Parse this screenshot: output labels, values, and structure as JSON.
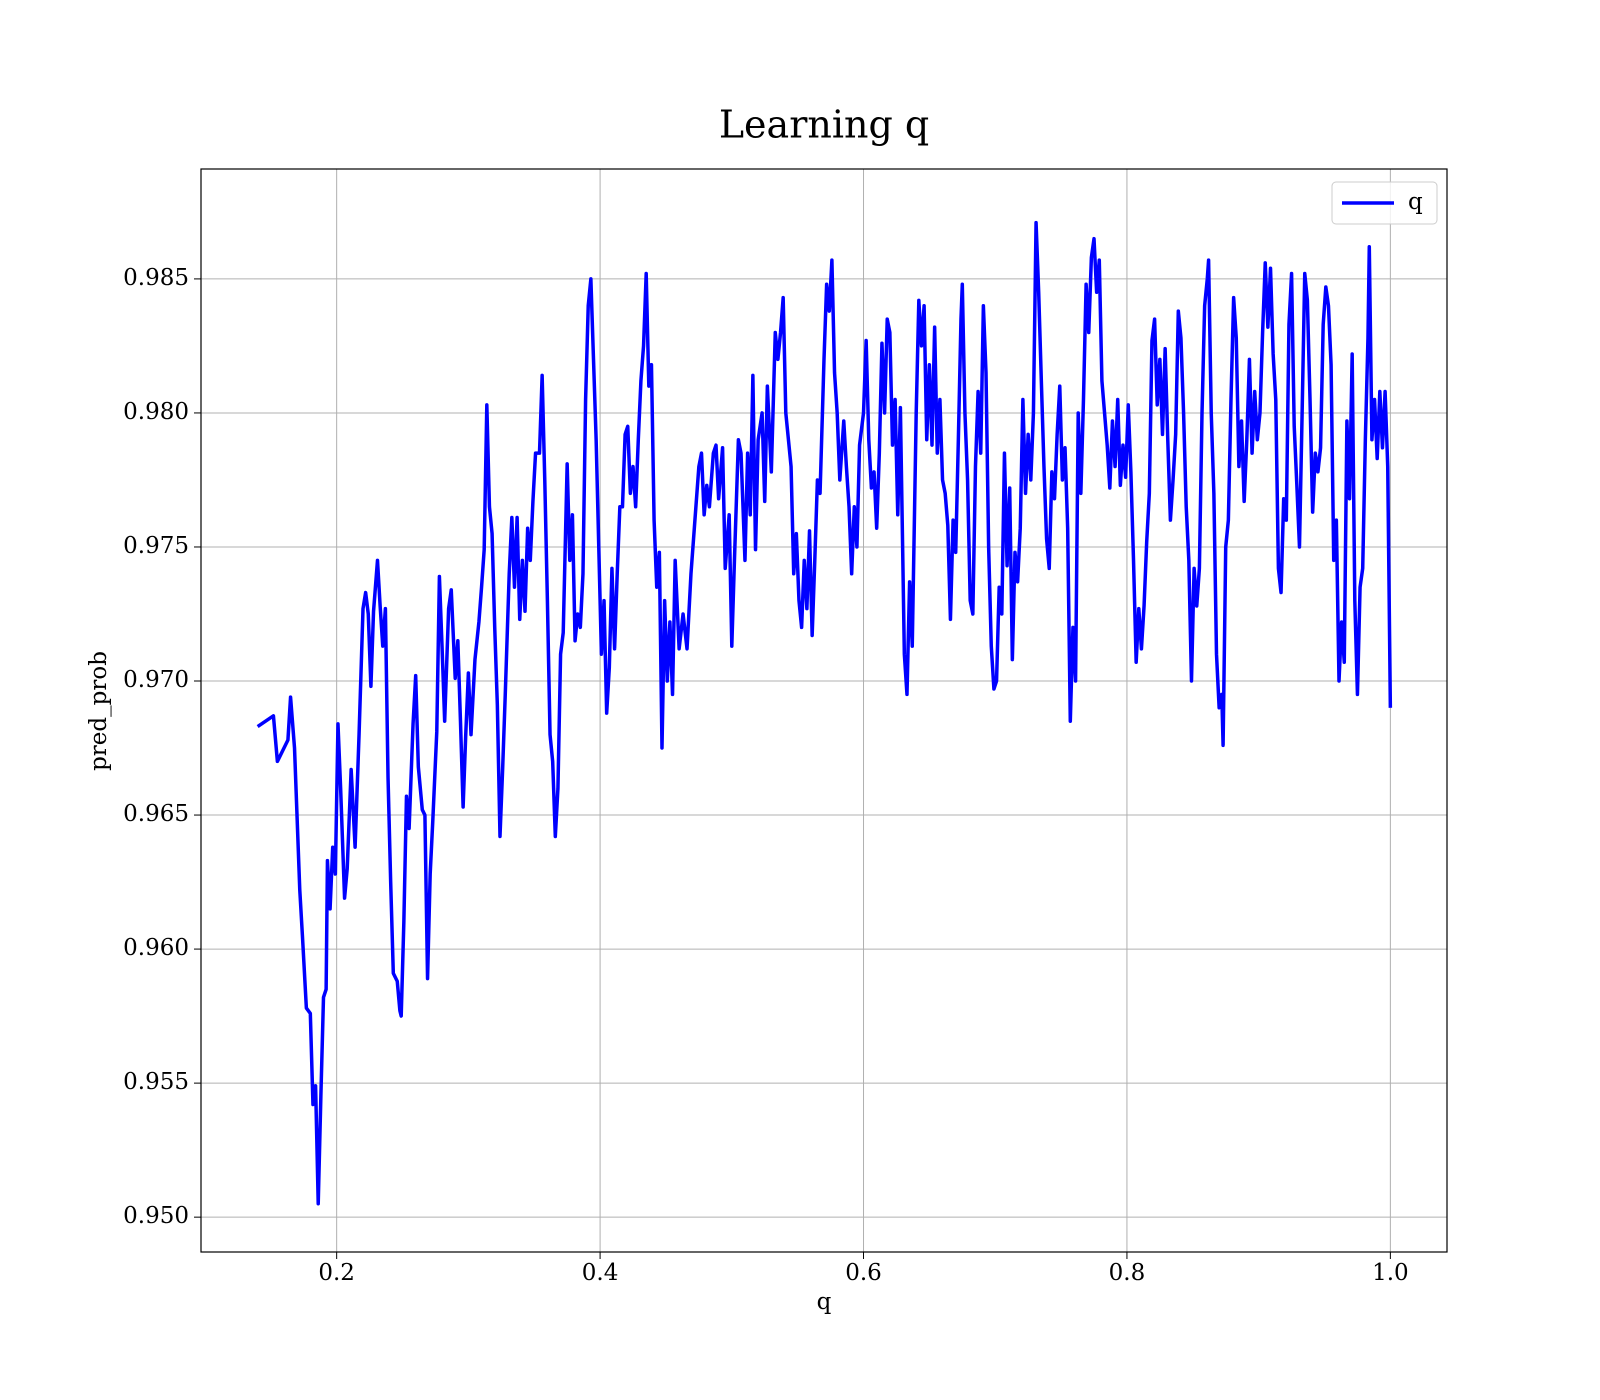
{
  "chart_data": {
    "type": "line",
    "title": "Learning q",
    "x_label": "q",
    "y_label": "pred_prob",
    "x": [
      0.14,
      0.152,
      0.155,
      0.163,
      0.165,
      0.168,
      0.172,
      0.174,
      0.177,
      0.18,
      0.182,
      0.184,
      0.186,
      0.188,
      0.19,
      0.192,
      0.193,
      0.195,
      0.197,
      0.199,
      0.201,
      0.203,
      0.206,
      0.208,
      0.211,
      0.214,
      0.217,
      0.22,
      0.222,
      0.224,
      0.226,
      0.228,
      0.231,
      0.233,
      0.235,
      0.237,
      0.239,
      0.241,
      0.243,
      0.246,
      0.248,
      0.249,
      0.251,
      0.253,
      0.255,
      0.258,
      0.26,
      0.262,
      0.265,
      0.267,
      0.269,
      0.271,
      0.273,
      0.276,
      0.278,
      0.28,
      0.282,
      0.285,
      0.287,
      0.29,
      0.292,
      0.294,
      0.296,
      0.298,
      0.3,
      0.302,
      0.305,
      0.308,
      0.31,
      0.312,
      0.314,
      0.316,
      0.318,
      0.32,
      0.322,
      0.324,
      0.326,
      0.328,
      0.331,
      0.333,
      0.335,
      0.337,
      0.339,
      0.341,
      0.343,
      0.345,
      0.347,
      0.349,
      0.351,
      0.354,
      0.356,
      0.358,
      0.36,
      0.362,
      0.364,
      0.366,
      0.368,
      0.37,
      0.372,
      0.375,
      0.377,
      0.379,
      0.381,
      0.383,
      0.385,
      0.387,
      0.389,
      0.391,
      0.393,
      0.395,
      0.397,
      0.399,
      0.401,
      0.403,
      0.405,
      0.407,
      0.409,
      0.411,
      0.413,
      0.415,
      0.417,
      0.419,
      0.421,
      0.423,
      0.425,
      0.427,
      0.429,
      0.431,
      0.433,
      0.435,
      0.437,
      0.439,
      0.441,
      0.443,
      0.445,
      0.447,
      0.449,
      0.451,
      0.453,
      0.455,
      0.457,
      0.46,
      0.463,
      0.466,
      0.469,
      0.472,
      0.475,
      0.477,
      0.479,
      0.481,
      0.483,
      0.486,
      0.488,
      0.49,
      0.493,
      0.495,
      0.498,
      0.5,
      0.502,
      0.505,
      0.507,
      0.51,
      0.512,
      0.514,
      0.516,
      0.518,
      0.52,
      0.523,
      0.525,
      0.527,
      0.53,
      0.533,
      0.535,
      0.537,
      0.539,
      0.541,
      0.543,
      0.545,
      0.547,
      0.549,
      0.551,
      0.553,
      0.555,
      0.557,
      0.559,
      0.561,
      0.563,
      0.565,
      0.567,
      0.57,
      0.572,
      0.574,
      0.576,
      0.578,
      0.58,
      0.582,
      0.585,
      0.587,
      0.589,
      0.591,
      0.593,
      0.595,
      0.597,
      0.6,
      0.602,
      0.604,
      0.606,
      0.608,
      0.61,
      0.612,
      0.614,
      0.616,
      0.618,
      0.62,
      0.622,
      0.624,
      0.626,
      0.628,
      0.631,
      0.633,
      0.635,
      0.637,
      0.64,
      0.642,
      0.644,
      0.646,
      0.648,
      0.65,
      0.652,
      0.654,
      0.656,
      0.658,
      0.66,
      0.662,
      0.664,
      0.666,
      0.668,
      0.67,
      0.672,
      0.674,
      0.675,
      0.677,
      0.679,
      0.681,
      0.683,
      0.685,
      0.687,
      0.689,
      0.691,
      0.693,
      0.695,
      0.697,
      0.699,
      0.701,
      0.703,
      0.705,
      0.707,
      0.709,
      0.711,
      0.713,
      0.715,
      0.717,
      0.719,
      0.721,
      0.723,
      0.725,
      0.727,
      0.729,
      0.731,
      0.733,
      0.735,
      0.737,
      0.739,
      0.741,
      0.743,
      0.745,
      0.747,
      0.749,
      0.751,
      0.753,
      0.755,
      0.757,
      0.759,
      0.761,
      0.763,
      0.765,
      0.767,
      0.769,
      0.771,
      0.773,
      0.775,
      0.777,
      0.779,
      0.781,
      0.783,
      0.785,
      0.787,
      0.789,
      0.791,
      0.793,
      0.795,
      0.797,
      0.799,
      0.801,
      0.803,
      0.805,
      0.807,
      0.809,
      0.811,
      0.813,
      0.815,
      0.817,
      0.819,
      0.821,
      0.823,
      0.825,
      0.827,
      0.829,
      0.831,
      0.833,
      0.835,
      0.837,
      0.839,
      0.841,
      0.843,
      0.845,
      0.847,
      0.849,
      0.851,
      0.853,
      0.855,
      0.857,
      0.859,
      0.861,
      0.862,
      0.864,
      0.866,
      0.868,
      0.87,
      0.872,
      0.873,
      0.875,
      0.877,
      0.879,
      0.881,
      0.883,
      0.885,
      0.887,
      0.889,
      0.891,
      0.893,
      0.895,
      0.897,
      0.899,
      0.901,
      0.903,
      0.905,
      0.907,
      0.909,
      0.911,
      0.913,
      0.915,
      0.917,
      0.919,
      0.921,
      0.923,
      0.925,
      0.927,
      0.929,
      0.931,
      0.933,
      0.935,
      0.937,
      0.939,
      0.941,
      0.943,
      0.945,
      0.947,
      0.949,
      0.951,
      0.953,
      0.955,
      0.957,
      0.959,
      0.961,
      0.963,
      0.965,
      0.967,
      0.969,
      0.971,
      0.973,
      0.975,
      0.977,
      0.979,
      0.981,
      0.983,
      0.984,
      0.986,
      0.988,
      0.99,
      0.992,
      0.994,
      0.996,
      0.998,
      1.0
    ],
    "series": [
      {
        "name": "q",
        "color": "#0000ff",
        "values": [
          0.9683,
          0.9687,
          0.967,
          0.9678,
          0.9694,
          0.9675,
          0.9622,
          0.9605,
          0.9578,
          0.9576,
          0.9542,
          0.9549,
          0.9505,
          0.9545,
          0.9582,
          0.9585,
          0.9633,
          0.9615,
          0.9638,
          0.9628,
          0.9684,
          0.966,
          0.9619,
          0.963,
          0.9667,
          0.9638,
          0.968,
          0.9727,
          0.9733,
          0.9725,
          0.9698,
          0.9726,
          0.9745,
          0.9728,
          0.9713,
          0.9727,
          0.9664,
          0.9625,
          0.9591,
          0.9588,
          0.9577,
          0.9575,
          0.961,
          0.9657,
          0.9645,
          0.9684,
          0.9702,
          0.9668,
          0.9652,
          0.965,
          0.9589,
          0.9628,
          0.9648,
          0.9681,
          0.9739,
          0.9713,
          0.9685,
          0.9727,
          0.9734,
          0.9701,
          0.9715,
          0.9685,
          0.9653,
          0.968,
          0.9703,
          0.968,
          0.9708,
          0.9722,
          0.9735,
          0.9749,
          0.9803,
          0.9765,
          0.9755,
          0.972,
          0.9691,
          0.9642,
          0.9667,
          0.9695,
          0.974,
          0.9761,
          0.9735,
          0.9761,
          0.9723,
          0.9745,
          0.9726,
          0.9757,
          0.9745,
          0.9767,
          0.9785,
          0.9785,
          0.9814,
          0.9775,
          0.973,
          0.968,
          0.967,
          0.9642,
          0.966,
          0.971,
          0.9718,
          0.9781,
          0.9745,
          0.9762,
          0.9715,
          0.9725,
          0.972,
          0.974,
          0.9805,
          0.984,
          0.985,
          0.982,
          0.979,
          0.975,
          0.971,
          0.973,
          0.9688,
          0.9705,
          0.9742,
          0.9712,
          0.974,
          0.9765,
          0.9765,
          0.9792,
          0.9795,
          0.977,
          0.978,
          0.9765,
          0.979,
          0.9812,
          0.9825,
          0.9852,
          0.981,
          0.9818,
          0.976,
          0.9735,
          0.9748,
          0.9675,
          0.973,
          0.97,
          0.9722,
          0.9695,
          0.9745,
          0.9712,
          0.9725,
          0.9712,
          0.974,
          0.976,
          0.978,
          0.9785,
          0.9762,
          0.9773,
          0.9765,
          0.9785,
          0.9788,
          0.9768,
          0.9787,
          0.9742,
          0.9762,
          0.9713,
          0.9745,
          0.979,
          0.9785,
          0.9745,
          0.9785,
          0.9762,
          0.9814,
          0.9749,
          0.979,
          0.98,
          0.9767,
          0.981,
          0.9778,
          0.983,
          0.982,
          0.983,
          0.9843,
          0.98,
          0.979,
          0.978,
          0.974,
          0.9755,
          0.973,
          0.972,
          0.9745,
          0.9727,
          0.9756,
          0.9717,
          0.9745,
          0.9775,
          0.977,
          0.982,
          0.9848,
          0.9838,
          0.9857,
          0.9815,
          0.98,
          0.9775,
          0.9797,
          0.978,
          0.9765,
          0.974,
          0.9765,
          0.975,
          0.9788,
          0.98,
          0.9827,
          0.979,
          0.9772,
          0.9778,
          0.9757,
          0.9785,
          0.9826,
          0.98,
          0.9835,
          0.983,
          0.9788,
          0.9805,
          0.9762,
          0.9802,
          0.971,
          0.9695,
          0.9737,
          0.9713,
          0.98,
          0.9842,
          0.9825,
          0.984,
          0.979,
          0.9818,
          0.9788,
          0.9832,
          0.9785,
          0.9805,
          0.9775,
          0.977,
          0.9758,
          0.9723,
          0.976,
          0.9748,
          0.979,
          0.9835,
          0.9848,
          0.98,
          0.9775,
          0.973,
          0.9725,
          0.978,
          0.9808,
          0.9785,
          0.984,
          0.9815,
          0.975,
          0.9713,
          0.9697,
          0.97,
          0.9735,
          0.9725,
          0.9785,
          0.9743,
          0.9772,
          0.9708,
          0.9748,
          0.9737,
          0.9757,
          0.9805,
          0.977,
          0.9792,
          0.9775,
          0.98,
          0.9871,
          0.9845,
          0.9812,
          0.978,
          0.9753,
          0.9742,
          0.9778,
          0.9768,
          0.9792,
          0.981,
          0.9775,
          0.9787,
          0.9757,
          0.9685,
          0.972,
          0.97,
          0.98,
          0.977,
          0.9805,
          0.9848,
          0.983,
          0.9858,
          0.9865,
          0.9845,
          0.9857,
          0.9812,
          0.98,
          0.9788,
          0.9772,
          0.9797,
          0.978,
          0.9805,
          0.9773,
          0.9788,
          0.9776,
          0.9803,
          0.9778,
          0.9745,
          0.9707,
          0.9727,
          0.9712,
          0.9728,
          0.9752,
          0.977,
          0.9827,
          0.9835,
          0.9803,
          0.982,
          0.9792,
          0.9824,
          0.979,
          0.976,
          0.9775,
          0.9792,
          0.9838,
          0.9828,
          0.98,
          0.9765,
          0.9745,
          0.97,
          0.9742,
          0.9728,
          0.9742,
          0.98,
          0.984,
          0.985,
          0.9857,
          0.98,
          0.977,
          0.971,
          0.969,
          0.9695,
          0.9676,
          0.975,
          0.976,
          0.9805,
          0.9843,
          0.9828,
          0.978,
          0.9797,
          0.9767,
          0.979,
          0.982,
          0.9785,
          0.9808,
          0.979,
          0.98,
          0.983,
          0.9856,
          0.9832,
          0.9854,
          0.9822,
          0.9805,
          0.9742,
          0.9733,
          0.9768,
          0.976,
          0.9833,
          0.9852,
          0.9795,
          0.9773,
          0.975,
          0.98,
          0.9852,
          0.9842,
          0.9805,
          0.9763,
          0.9785,
          0.9778,
          0.9787,
          0.9833,
          0.9847,
          0.984,
          0.9818,
          0.9745,
          0.976,
          0.97,
          0.9722,
          0.9707,
          0.9797,
          0.9768,
          0.9822,
          0.973,
          0.9695,
          0.9735,
          0.9742,
          0.979,
          0.9828,
          0.9862,
          0.979,
          0.9805,
          0.9783,
          0.9808,
          0.9787,
          0.9808,
          0.978,
          0.969
        ]
      }
    ],
    "xlim": [
      0.097,
      1.043
    ],
    "xticks": [
      0.2,
      0.4,
      0.6,
      0.8,
      {
        "value": 1.0,
        "label": "1.0"
      }
    ],
    "ylim": [
      0.9487,
      0.9891
    ],
    "yticks": [
      {
        "value": 0.95,
        "label": "0.950"
      },
      0.955,
      {
        "value": 0.96,
        "label": "0.960"
      },
      0.965,
      {
        "value": 0.97,
        "label": "0.970"
      },
      0.975,
      {
        "value": 0.98,
        "label": "0.980"
      },
      0.985
    ],
    "grid": true,
    "legend": "upper-right"
  }
}
